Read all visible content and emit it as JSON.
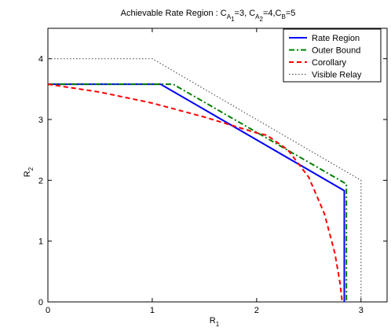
{
  "chart_data": {
    "type": "line",
    "title_parts": {
      "pre": "Achievable Rate Region : C",
      "sub1": "A",
      "subsub1": "1",
      "mid1": "=3, C",
      "sub2": "A",
      "subsub2": "2",
      "mid2": "=4,C",
      "sub3": "B",
      "post": "=5"
    },
    "xlabel": {
      "base": "R",
      "sub": "1"
    },
    "ylabel": {
      "base": "R",
      "sub": "2"
    },
    "xlim": [
      0,
      3.25
    ],
    "ylim": [
      0,
      4.5
    ],
    "xticks": [
      "0",
      "1",
      "2",
      "3"
    ],
    "yticks": [
      "0",
      "1",
      "2",
      "3",
      "4"
    ],
    "legend_position": "top-right",
    "series": [
      {
        "name": "Rate Region",
        "color": "#0000ff",
        "style": "solid",
        "x": [
          0,
          1.08,
          2.84,
          2.84
        ],
        "y": [
          3.58,
          3.58,
          1.83,
          0
        ]
      },
      {
        "name": "Outer Bound",
        "color": "#008000",
        "style": "dashdot",
        "x": [
          0,
          1.2,
          2.86,
          2.86
        ],
        "y": [
          3.58,
          3.58,
          1.94,
          0
        ]
      },
      {
        "name": "Corollary",
        "color": "#ff0000",
        "style": "dashed",
        "x": [
          0,
          0.5,
          1.0,
          1.5,
          2.0,
          2.1,
          2.3,
          2.5,
          2.65,
          2.75,
          2.8,
          2.82
        ],
        "y": [
          3.58,
          3.45,
          3.27,
          3.04,
          2.78,
          2.74,
          2.5,
          2.05,
          1.45,
          0.8,
          0.3,
          0
        ]
      },
      {
        "name": "Visible Relay",
        "color": "#555555",
        "style": "dotted",
        "x": [
          0,
          1.0,
          3.0,
          3.0
        ],
        "y": [
          4.0,
          4.0,
          2.0,
          0
        ]
      }
    ]
  }
}
